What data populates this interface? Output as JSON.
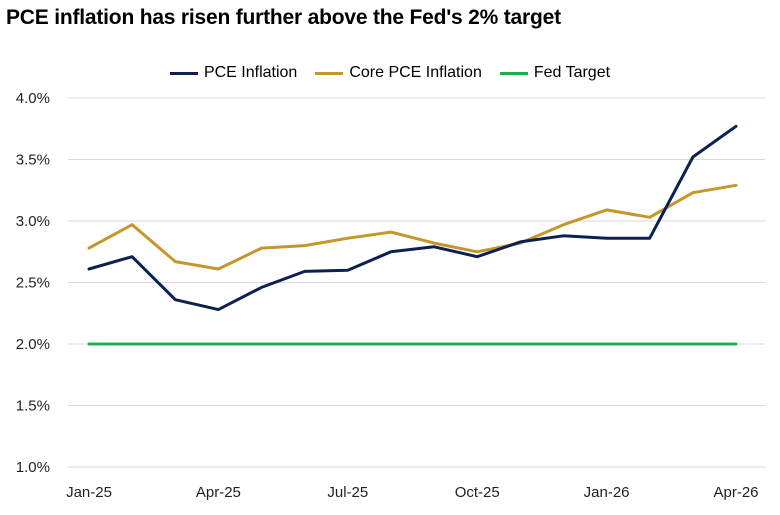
{
  "title": "PCE inflation has risen further above the Fed's 2% target",
  "chart_data": {
    "type": "line",
    "title": "PCE inflation has risen further above the Fed's 2% target",
    "x": [
      "Jan-25",
      "Feb-25",
      "Mar-25",
      "Apr-25",
      "May-25",
      "Jun-25",
      "Jul-25",
      "Aug-25",
      "Sep-25",
      "Oct-25",
      "Nov-25",
      "Dec-25",
      "Jan-26",
      "Feb-26",
      "Mar-26",
      "Apr-26"
    ],
    "x_tick_labels": [
      "Jan-25",
      "Apr-25",
      "Jul-25",
      "Oct-25",
      "Jan-26",
      "Apr-26"
    ],
    "y_tick_labels": [
      "1.0%",
      "1.5%",
      "2.0%",
      "2.5%",
      "3.0%",
      "3.5%",
      "4.0%"
    ],
    "ylim": [
      1.0,
      4.0
    ],
    "grid": "horizontal",
    "legend_position": "top",
    "series": [
      {
        "name": "PCE Inflation",
        "color": "#0d2150",
        "values": [
          2.61,
          2.71,
          2.36,
          2.28,
          2.46,
          2.59,
          2.6,
          2.75,
          2.79,
          2.71,
          2.83,
          2.88,
          2.86,
          2.86,
          3.52,
          3.77
        ]
      },
      {
        "name": "Core PCE Inflation",
        "color": "#c4962c",
        "values": [
          2.78,
          2.97,
          2.67,
          2.61,
          2.78,
          2.8,
          2.86,
          2.91,
          2.82,
          2.75,
          2.82,
          2.97,
          3.09,
          3.03,
          3.23,
          3.29
        ]
      },
      {
        "name": "Fed Target",
        "color": "#1fae48",
        "values": [
          2.0,
          2.0,
          2.0,
          2.0,
          2.0,
          2.0,
          2.0,
          2.0,
          2.0,
          2.0,
          2.0,
          2.0,
          2.0,
          2.0,
          2.0,
          2.0
        ]
      }
    ]
  }
}
